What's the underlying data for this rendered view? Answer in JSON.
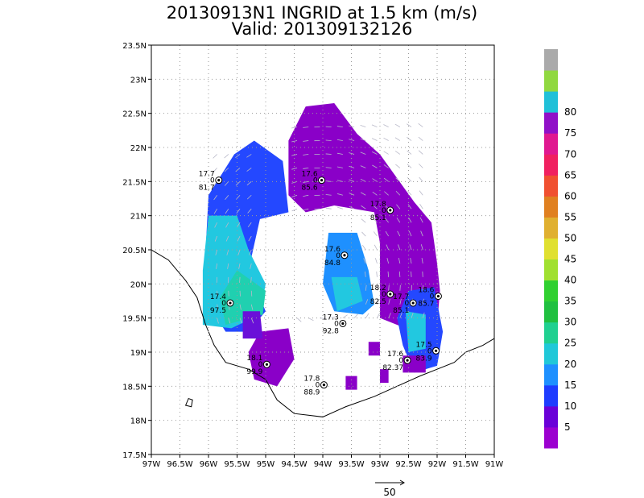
{
  "chart_data": {
    "type": "heatmap",
    "title": "20130913N1 INGRID at 1.5 km (m/s)",
    "subtitle": "Valid: 201309132126",
    "x_ticks": [
      "97W",
      "96.5W",
      "96W",
      "95.5W",
      "95W",
      "94.5W",
      "94W",
      "93.5W",
      "93W",
      "92.5W",
      "92W",
      "91.5W",
      "91W"
    ],
    "y_ticks": [
      "17.5N",
      "18N",
      "18.5N",
      "19N",
      "19.5N",
      "20N",
      "20.5N",
      "21N",
      "21.5N",
      "22N",
      "22.5N",
      "23N",
      "23.5N"
    ],
    "xlim": [
      -97,
      -91
    ],
    "ylim": [
      17.5,
      23.5
    ],
    "grid": true,
    "colorbar": {
      "labels": [
        "5",
        "10",
        "15",
        "20",
        "25",
        "30",
        "35",
        "40",
        "45",
        "50",
        "55",
        "60",
        "65",
        "70",
        "75",
        "80"
      ],
      "colors": [
        "#9c00d0",
        "#6a00d8",
        "#1e3cff",
        "#1e90ff",
        "#20c8d8",
        "#20d090",
        "#20c040",
        "#30d030",
        "#a0e030",
        "#e0e030",
        "#e0b030",
        "#e08020",
        "#f05030",
        "#f02060",
        "#e01890",
        "#9010c8",
        "#20c0d8",
        "#90d840",
        "#aaaaaa"
      ]
    },
    "reference_vector": "50",
    "observations": [
      {
        "lon": -95.82,
        "lat": 21.52,
        "lines": [
          "17.7",
          "0",
          "81.7"
        ]
      },
      {
        "lon": -94.02,
        "lat": 21.52,
        "lines": [
          "17.6",
          "0",
          "85.6"
        ]
      },
      {
        "lon": -92.82,
        "lat": 21.08,
        "lines": [
          "17.8",
          "0",
          "85.1"
        ]
      },
      {
        "lon": -93.62,
        "lat": 20.42,
        "lines": [
          "17.6",
          "0",
          "84.8"
        ]
      },
      {
        "lon": -92.82,
        "lat": 19.85,
        "lines": [
          "18.2",
          "0",
          "82.5"
        ]
      },
      {
        "lon": -92.42,
        "lat": 19.72,
        "lines": [
          "17.7",
          "0",
          "85.1"
        ]
      },
      {
        "lon": -91.98,
        "lat": 19.82,
        "lines": [
          "18.6",
          "0",
          "85.7"
        ]
      },
      {
        "lon": -95.62,
        "lat": 19.72,
        "lines": [
          "17.4",
          "0",
          "97.5"
        ]
      },
      {
        "lon": -93.65,
        "lat": 19.42,
        "lines": [
          "17.3",
          "0",
          "92.8"
        ]
      },
      {
        "lon": -92.02,
        "lat": 19.02,
        "lines": [
          "17.5",
          "0",
          "83.9"
        ]
      },
      {
        "lon": -92.52,
        "lat": 18.88,
        "lines": [
          "17.6",
          "0",
          "82.37"
        ]
      },
      {
        "lon": -94.98,
        "lat": 18.82,
        "lines": [
          "18.1",
          "0",
          "99.9"
        ]
      },
      {
        "lon": -93.98,
        "lat": 18.52,
        "lines": [
          "17.8",
          "0",
          "88.9"
        ]
      }
    ]
  }
}
